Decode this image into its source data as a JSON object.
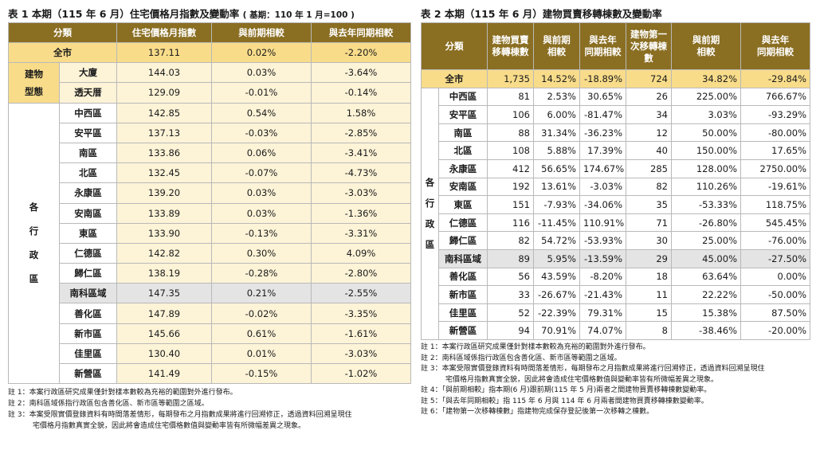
{
  "left": {
    "title": "表 1 本期（115 年 6 月）住宅價格月指數及變動率",
    "title_base": "( 基期：110 年 1 月=100 )",
    "headers": [
      "分類",
      "住宅價格月指數",
      "與前期相較",
      "與去年同期相較"
    ],
    "total": {
      "name": "全市",
      "index": "137.11",
      "mom": "0.02%",
      "yoy": "-2.20%"
    },
    "type_group": {
      "label_line1": "建物",
      "label_line2": "型態"
    },
    "types": [
      {
        "name": "大廈",
        "index": "144.03",
        "mom": "0.03%",
        "yoy": "-3.64%"
      },
      {
        "name": "透天厝",
        "index": "129.09",
        "mom": "-0.01%",
        "yoy": "-0.14%"
      }
    ],
    "district_group": {
      "chars": [
        "各",
        "行",
        "政",
        "區"
      ]
    },
    "districts": [
      {
        "name": "中西區",
        "index": "142.85",
        "mom": "0.54%",
        "yoy": "1.58%"
      },
      {
        "name": "安平區",
        "index": "137.13",
        "mom": "-0.03%",
        "yoy": "-2.85%"
      },
      {
        "name": "南區",
        "index": "133.86",
        "mom": "0.06%",
        "yoy": "-3.41%"
      },
      {
        "name": "北區",
        "index": "132.45",
        "mom": "-0.07%",
        "yoy": "-4.73%"
      },
      {
        "name": "永康區",
        "index": "139.20",
        "mom": "0.03%",
        "yoy": "-3.03%"
      },
      {
        "name": "安南區",
        "index": "133.89",
        "mom": "0.03%",
        "yoy": "-1.36%"
      },
      {
        "name": "東區",
        "index": "133.90",
        "mom": "-0.13%",
        "yoy": "-3.31%"
      },
      {
        "name": "仁德區",
        "index": "142.82",
        "mom": "0.30%",
        "yoy": "4.09%"
      },
      {
        "name": "歸仁區",
        "index": "138.19",
        "mom": "-0.28%",
        "yoy": "-2.80%"
      },
      {
        "name": "南科區域",
        "index": "147.35",
        "mom": "0.21%",
        "yoy": "-2.55%"
      },
      {
        "name": "善化區",
        "index": "147.89",
        "mom": "-0.02%",
        "yoy": "-3.35%"
      },
      {
        "name": "新市區",
        "index": "145.66",
        "mom": "0.61%",
        "yoy": "-1.61%"
      },
      {
        "name": "佳里區",
        "index": "130.40",
        "mom": "0.01%",
        "yoy": "-3.03%"
      },
      {
        "name": "新營區",
        "index": "141.49",
        "mom": "-0.15%",
        "yoy": "-1.02%"
      }
    ],
    "notes": [
      "註 1：本案行政區研究成果僅針對樣本數較為充裕的範圍對外進行發布。",
      "註 2：南科區域係指行政區包含善化區、新市區等範圍之區域。",
      "註 3：本案受限實價登錄資料有時間落差情形，每期發布之月指數成果將進行回溯修正，透過資料回溯呈現住",
      "宅價格月指數真實全貌，因此將會造成住宅價格數值與變動率皆有所微幅差異之現象。"
    ]
  },
  "right": {
    "title": "表 2 本期（115 年 6 月）建物買賣移轉棟數及變動率",
    "headers": {
      "category": "分類",
      "count_l1": "建物買賣",
      "count_l2": "移轉棟數",
      "mom_l1": "與前期",
      "mom_l2": "相較",
      "yoy_l1": "與去年",
      "yoy_l2": "同期相較",
      "first_l1": "建物第一",
      "first_l2": "次移轉棟",
      "first_l3": "數",
      "fmom_l1": "與前期",
      "fmom_l2": "相較",
      "fyoy_l1": "與去年",
      "fyoy_l2": "同期相較"
    },
    "total": {
      "name": "全市",
      "c": "1,735",
      "m": "14.52%",
      "y": "-18.89%",
      "f": "724",
      "fm": "34.82%",
      "fy": "-29.84%"
    },
    "district_group": {
      "chars": [
        "各",
        "行",
        "政",
        "區"
      ]
    },
    "districts": [
      {
        "name": "中西區",
        "c": "81",
        "m": "2.53%",
        "y": "30.65%",
        "f": "26",
        "fm": "225.00%",
        "fy": "766.67%"
      },
      {
        "name": "安平區",
        "c": "106",
        "m": "6.00%",
        "y": "-81.47%",
        "f": "34",
        "fm": "3.03%",
        "fy": "-93.29%"
      },
      {
        "name": "南區",
        "c": "88",
        "m": "31.34%",
        "y": "-36.23%",
        "f": "12",
        "fm": "50.00%",
        "fy": "-80.00%"
      },
      {
        "name": "北區",
        "c": "108",
        "m": "5.88%",
        "y": "17.39%",
        "f": "40",
        "fm": "150.00%",
        "fy": "17.65%"
      },
      {
        "name": "永康區",
        "c": "412",
        "m": "56.65%",
        "y": "174.67%",
        "f": "285",
        "fm": "128.00%",
        "fy": "2750.00%"
      },
      {
        "name": "安南區",
        "c": "192",
        "m": "13.61%",
        "y": "-3.03%",
        "f": "82",
        "fm": "110.26%",
        "fy": "-19.61%"
      },
      {
        "name": "東區",
        "c": "151",
        "m": "-7.93%",
        "y": "-34.06%",
        "f": "35",
        "fm": "-53.33%",
        "fy": "118.75%"
      },
      {
        "name": "仁德區",
        "c": "116",
        "m": "-11.45%",
        "y": "110.91%",
        "f": "71",
        "fm": "-26.80%",
        "fy": "545.45%"
      },
      {
        "name": "歸仁區",
        "c": "82",
        "m": "54.72%",
        "y": "-53.93%",
        "f": "30",
        "fm": "25.00%",
        "fy": "-76.00%"
      },
      {
        "name": "南科區域",
        "c": "89",
        "m": "5.95%",
        "y": "-13.59%",
        "f": "29",
        "fm": "45.00%",
        "fy": "-27.50%"
      },
      {
        "name": "善化區",
        "c": "56",
        "m": "43.59%",
        "y": "-8.20%",
        "f": "18",
        "fm": "63.64%",
        "fy": "0.00%"
      },
      {
        "name": "新市區",
        "c": "33",
        "m": "-26.67%",
        "y": "-21.43%",
        "f": "11",
        "fm": "22.22%",
        "fy": "-50.00%"
      },
      {
        "name": "佳里區",
        "c": "52",
        "m": "-22.39%",
        "y": "79.31%",
        "f": "15",
        "fm": "15.38%",
        "fy": "87.50%"
      },
      {
        "name": "新營區",
        "c": "94",
        "m": "70.91%",
        "y": "74.07%",
        "f": "8",
        "fm": "-38.46%",
        "fy": "-20.00%"
      }
    ],
    "notes": [
      "註 1：本案行政區研究成果僅針對樣本數較為充裕的範圍對外進行發布。",
      "註 2：南科區域係指行政區包含善化區、新市區等範圍之區域。",
      "註 3：本案受限實價登錄資料有時間落差情形，每期發布之月指數成果將進行回溯修正，透過資料回溯呈現住",
      "宅價格月指數真實全貌，因此將會造成住宅價格數值與變動率皆有所微幅差異之現象。",
      "註 4：「與前期相較」指本期(6 月)跟前期(115 年 5 月)兩者之間建物買賣移轉棟數變動率。",
      "註 5：「與去年同期相較」指 115 年 6 月與 114 年 6 月兩者間建物買賣移轉棟數變動率。",
      "註 6：「建物第一次移轉棟數」指建物完成保存登記後第一次移轉之棟數。"
    ]
  },
  "colors": {
    "header_brown": "#8a6e22",
    "total_yellow": "#f8dc8a",
    "cell_cream": "#fdf3d7",
    "highlight_gray": "#e4e4e4"
  }
}
